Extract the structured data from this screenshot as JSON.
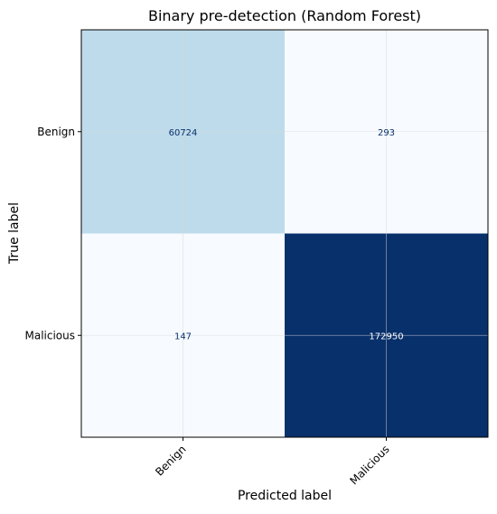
{
  "chart_data": {
    "type": "heatmap",
    "title": "Binary pre-detection (Random Forest)",
    "xlabel": "Predicted label",
    "ylabel": "True label",
    "x_categories": [
      "Benign",
      "Malicious"
    ],
    "y_categories": [
      "Benign",
      "Malicious"
    ],
    "values": [
      [
        60724,
        293
      ],
      [
        147,
        172950
      ]
    ],
    "colormap": "Blues",
    "colors": {
      "cell_low": "#f7fbff",
      "cell_mid": "#a6cde2",
      "cell_high": "#08306b",
      "text_dark": "#08306b",
      "text_light": "#ffffff",
      "grid": "#d9d9d9"
    },
    "grid": true
  }
}
